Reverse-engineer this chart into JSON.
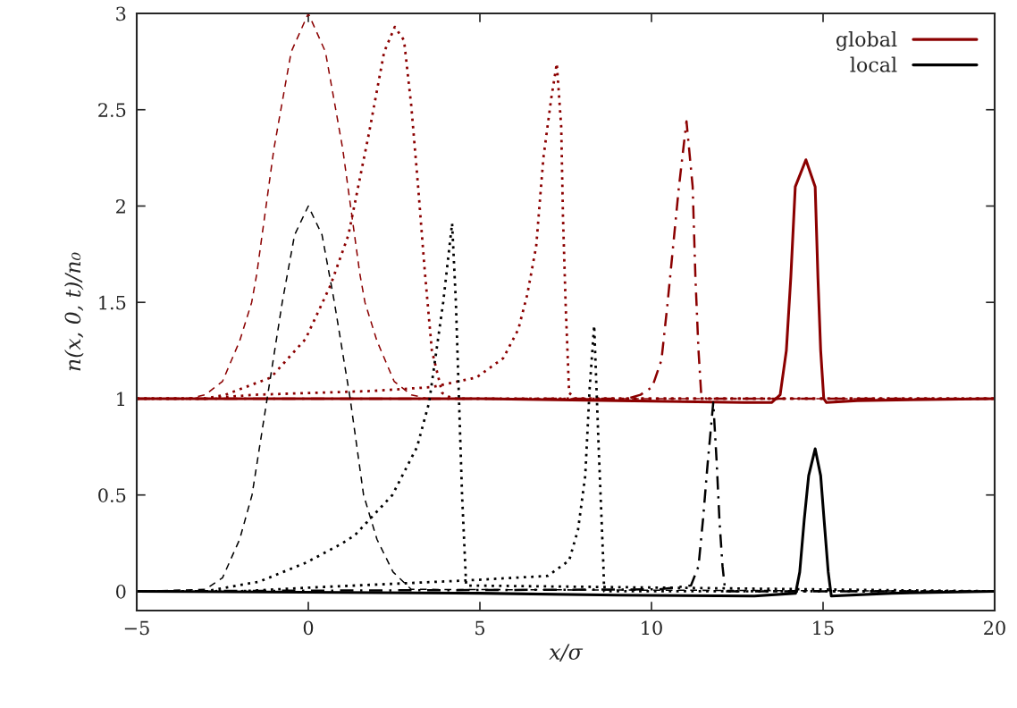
{
  "chart_data": {
    "type": "line",
    "xlabel": "x/σ",
    "ylabel": "n(x, 0, t)/n₀",
    "xlim": [
      -5,
      20
    ],
    "xticks": [
      {
        "value": -5,
        "label": "−5"
      },
      0,
      5,
      10,
      15,
      20
    ],
    "ylim": [
      -0.1,
      3
    ],
    "yticks": [
      0,
      0.5,
      1,
      1.5,
      2,
      2.5,
      3
    ],
    "grid": false,
    "legend": "top right",
    "marker": "none",
    "series": [
      {
        "color": "#8b0000",
        "line_style": "dashed",
        "x": [
          -5,
          -3.5,
          -3,
          -2.5,
          -2,
          -1.65,
          -1.5,
          -1,
          -0.5,
          0,
          0.5,
          1,
          1.5,
          1.65,
          2,
          2.5,
          3,
          3.5,
          20
        ],
        "values": [
          1,
          1,
          1.02,
          1.09,
          1.3,
          1.5,
          1.65,
          2.3,
          2.8,
          3,
          2.8,
          2.3,
          1.65,
          1.5,
          1.3,
          1.09,
          1.02,
          1,
          1
        ]
      },
      {
        "color": "#8b0000",
        "line_style": "dotted",
        "x": [
          -5,
          -3,
          -2.42,
          -1.09,
          -0.08,
          0.65,
          1.17,
          1.77,
          2.21,
          2.52,
          2.79,
          3.0,
          3.2,
          3.39,
          3.6,
          3.9,
          4.2,
          20
        ],
        "values": [
          1,
          1,
          1.02,
          1.11,
          1.31,
          1.59,
          1.85,
          2.38,
          2.8,
          2.93,
          2.86,
          2.52,
          2.1,
          1.67,
          1.25,
          1.03,
          1,
          1
        ]
      },
      {
        "color": "#8b0000",
        "line_style": "dotted",
        "x": [
          -5,
          -3,
          -1.6,
          1.87,
          3.6,
          4.9,
          5.68,
          6.12,
          6.38,
          6.64,
          6.85,
          7.08,
          7.24,
          7.37,
          7.42,
          7.5,
          7.6,
          7.8,
          20
        ],
        "values": [
          1,
          1,
          1.02,
          1.04,
          1.06,
          1.11,
          1.21,
          1.36,
          1.54,
          1.79,
          2.25,
          2.56,
          2.74,
          2.41,
          1.95,
          1.48,
          1.03,
          1,
          1
        ]
      },
      {
        "color": "#8b0000",
        "line_style": "dashdot",
        "x": [
          -5,
          9.3,
          9.68,
          10.02,
          10.29,
          10.46,
          10.63,
          10.8,
          11.02,
          11.2,
          11.28,
          11.37,
          11.45,
          11.6,
          20
        ],
        "values": [
          1,
          1,
          1.02,
          1.06,
          1.2,
          1.48,
          1.79,
          2.1,
          2.44,
          2.1,
          1.63,
          1.25,
          1.02,
          1,
          1
        ]
      },
      {
        "name": "global",
        "color": "#8b0000",
        "line_style": "solid",
        "x": [
          -5,
          5,
          9,
          12.7,
          13.5,
          13.75,
          13.93,
          14.06,
          14.19,
          14.5,
          14.77,
          14.85,
          14.93,
          15.02,
          15.1,
          16,
          20
        ],
        "values": [
          1,
          1,
          0.99,
          0.98,
          0.98,
          1.02,
          1.25,
          1.63,
          2.1,
          2.24,
          2.1,
          1.63,
          1.25,
          1.0,
          0.98,
          0.99,
          1
        ]
      },
      {
        "color": "#000000",
        "line_style": "dashed",
        "x": [
          -5,
          -3,
          -2.5,
          -2,
          -1.64,
          -1.2,
          -0.76,
          -0.4,
          0,
          0.4,
          0.76,
          1.22,
          1.61,
          2,
          2.47,
          3,
          20
        ],
        "values": [
          0,
          0.01,
          0.07,
          0.27,
          0.5,
          1,
          1.5,
          1.85,
          2,
          1.85,
          1.5,
          1,
          0.5,
          0.27,
          0.1,
          0.01,
          0
        ]
      },
      {
        "color": "#000000",
        "line_style": "dotted",
        "x": [
          -5,
          -3,
          -1.43,
          -0.05,
          1.0,
          1.35,
          2.45,
          3.17,
          3.52,
          3.93,
          4.19,
          4.3,
          4.48,
          4.6,
          20
        ],
        "values": [
          0,
          0,
          0.05,
          0.15,
          0.25,
          0.29,
          0.5,
          0.75,
          0.98,
          1.5,
          1.91,
          1.5,
          0.5,
          0.03,
          0
        ]
      },
      {
        "color": "#000000",
        "line_style": "dotted",
        "x": [
          -5,
          -2,
          0.13,
          4.47,
          6.98,
          7.6,
          7.86,
          8.07,
          8.2,
          8.33,
          8.46,
          8.6,
          8.62,
          20
        ],
        "values": [
          0,
          0,
          0.02,
          0.055,
          0.08,
          0.16,
          0.32,
          0.6,
          1.06,
          1.38,
          0.75,
          0.13,
          0,
          0
        ]
      },
      {
        "color": "#000000",
        "line_style": "dashdot",
        "x": [
          -5,
          10.2,
          11.15,
          11.37,
          11.5,
          11.64,
          11.8,
          11.9,
          11.98,
          12.07,
          12.15,
          20
        ],
        "values": [
          0,
          0.01,
          0.03,
          0.13,
          0.37,
          0.67,
          0.98,
          0.67,
          0.37,
          0.13,
          0,
          0
        ]
      },
      {
        "name": "local",
        "color": "#000000",
        "line_style": "solid",
        "x": [
          -5,
          5,
          9,
          13,
          14.2,
          14.32,
          14.45,
          14.58,
          14.77,
          14.93,
          15.03,
          15.15,
          15.24,
          17,
          20
        ],
        "values": [
          0,
          -0.01,
          -0.02,
          -0.025,
          -0.01,
          0.1,
          0.37,
          0.6,
          0.74,
          0.6,
          0.37,
          0.1,
          -0.025,
          -0.01,
          0
        ]
      }
    ]
  }
}
